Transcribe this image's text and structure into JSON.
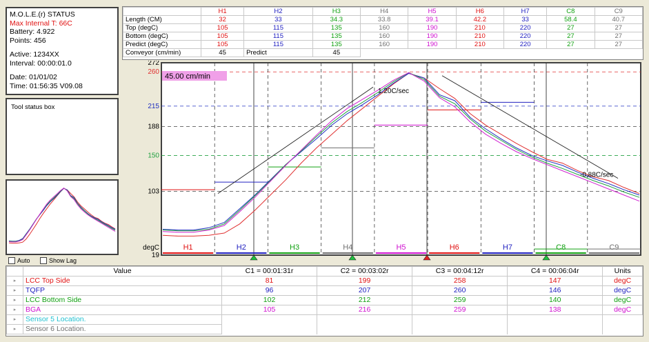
{
  "status": {
    "title": "M.O.L.E.(r) STATUS",
    "max_internal": "Max Internal T: 66C",
    "battery": "Battery: 4.922",
    "points": "Points: 456",
    "active": "Active: 1234XX",
    "interval": "Interval: 00:00:01.0",
    "date": "Date: 01/01/02",
    "time": "Time: 01:56:35  V09.08"
  },
  "tool_status": {
    "label": "Tool status box"
  },
  "checkboxes": {
    "auto": "Auto",
    "show_lag": "Show Lag"
  },
  "settings": {
    "columns": [
      {
        "label": "H1",
        "color": "#e01010"
      },
      {
        "label": "H2",
        "color": "#2020c0"
      },
      {
        "label": "H3",
        "color": "#10a010"
      },
      {
        "label": "H4",
        "color": "#707070"
      },
      {
        "label": "H5",
        "color": "#d010d0"
      },
      {
        "label": "H6",
        "color": "#e01010"
      },
      {
        "label": "H7",
        "color": "#2020c0"
      },
      {
        "label": "C8",
        "color": "#10a010"
      },
      {
        "label": "C9",
        "color": "#707070"
      }
    ],
    "rows": [
      {
        "label": "Length (CM)",
        "values": [
          "32",
          "33",
          "34.3",
          "33.8",
          "39.1",
          "42.2",
          "33",
          "58.4",
          "40.7"
        ]
      },
      {
        "label": "Top (degC)",
        "values": [
          "105",
          "115",
          "135",
          "160",
          "190",
          "210",
          "220",
          "27",
          "27"
        ]
      },
      {
        "label": "Bottom (degC)",
        "values": [
          "105",
          "115",
          "135",
          "160",
          "190",
          "210",
          "220",
          "27",
          "27"
        ]
      },
      {
        "label": "Predict (degC)",
        "values": [
          "105",
          "115",
          "135",
          "160",
          "190",
          "210",
          "220",
          "27",
          "27"
        ]
      }
    ],
    "conveyor": {
      "label": "Conveyor (cm/min)",
      "value": "45",
      "predict_label": "Predict",
      "predict_value": "45"
    }
  },
  "chart_data": {
    "type": "line",
    "badge": "45.00 cm/min",
    "y_ticks": [
      "272",
      "260",
      "215",
      "188",
      "150",
      "103",
      "degC",
      "19"
    ],
    "ylim": [
      19,
      272
    ],
    "zones": [
      "H1",
      "H2",
      "H3",
      "H4",
      "H5",
      "H6",
      "H7",
      "C8",
      "C9"
    ],
    "slope_up": "1.20C/sec",
    "slope_down": "-0.88C/sec",
    "series": [
      {
        "name": "LCC Top Side",
        "color": "#e03030",
        "values": [
          45,
          44,
          44,
          45,
          48,
          60,
          78,
          98,
          118,
          140,
          160,
          178,
          196,
          212,
          228,
          244,
          258,
          252,
          238,
          225,
          205,
          190,
          178,
          166,
          155,
          145,
          140,
          130,
          122,
          117,
          108,
          100
        ]
      },
      {
        "name": "TQFP",
        "color": "#2030c0",
        "values": [
          53,
          52,
          52,
          55,
          62,
          80,
          98,
          118,
          138,
          155,
          172,
          190,
          205,
          217,
          230,
          245,
          258,
          252,
          230,
          222,
          200,
          185,
          172,
          160,
          150,
          143,
          137,
          128,
          120,
          113,
          105,
          98
        ]
      },
      {
        "name": "LCC Bottom Side",
        "color": "#20a040",
        "values": [
          52,
          51,
          51,
          53,
          60,
          78,
          97,
          117,
          138,
          156,
          175,
          193,
          208,
          220,
          233,
          247,
          259,
          250,
          228,
          218,
          198,
          182,
          170,
          158,
          148,
          140,
          133,
          125,
          117,
          110,
          102,
          95
        ]
      },
      {
        "name": "BGA",
        "color": "#d020d0",
        "values": [
          50,
          49,
          49,
          52,
          58,
          76,
          95,
          116,
          137,
          157,
          177,
          196,
          212,
          224,
          236,
          249,
          259,
          248,
          226,
          214,
          194,
          178,
          166,
          155,
          146,
          138,
          130,
          122,
          114,
          106,
          98,
          90
        ]
      }
    ]
  },
  "results": {
    "headers": [
      "Value",
      "C1 = 00:01:31r",
      "C2 = 00:03:02r",
      "C3 = 00:04:12r",
      "C4 = 00:06:04r",
      "Units"
    ],
    "rows": [
      {
        "name": "LCC Top Side",
        "color": "#e01010",
        "values": [
          "81",
          "199",
          "258",
          "147"
        ],
        "unit": "degC"
      },
      {
        "name": "TQFP",
        "color": "#2020c0",
        "values": [
          "96",
          "207",
          "260",
          "146"
        ],
        "unit": "degC"
      },
      {
        "name": "LCC Bottom Side",
        "color": "#10a010",
        "values": [
          "102",
          "212",
          "259",
          "140"
        ],
        "unit": "degC"
      },
      {
        "name": "BGA",
        "color": "#d010d0",
        "values": [
          "105",
          "216",
          "259",
          "138"
        ],
        "unit": "degC"
      }
    ],
    "extra_rows": [
      {
        "name": "Sensor 5 Location.",
        "color": "#20c0d0"
      },
      {
        "name": "Sensor 6 Location.",
        "color": "#707070"
      }
    ]
  }
}
